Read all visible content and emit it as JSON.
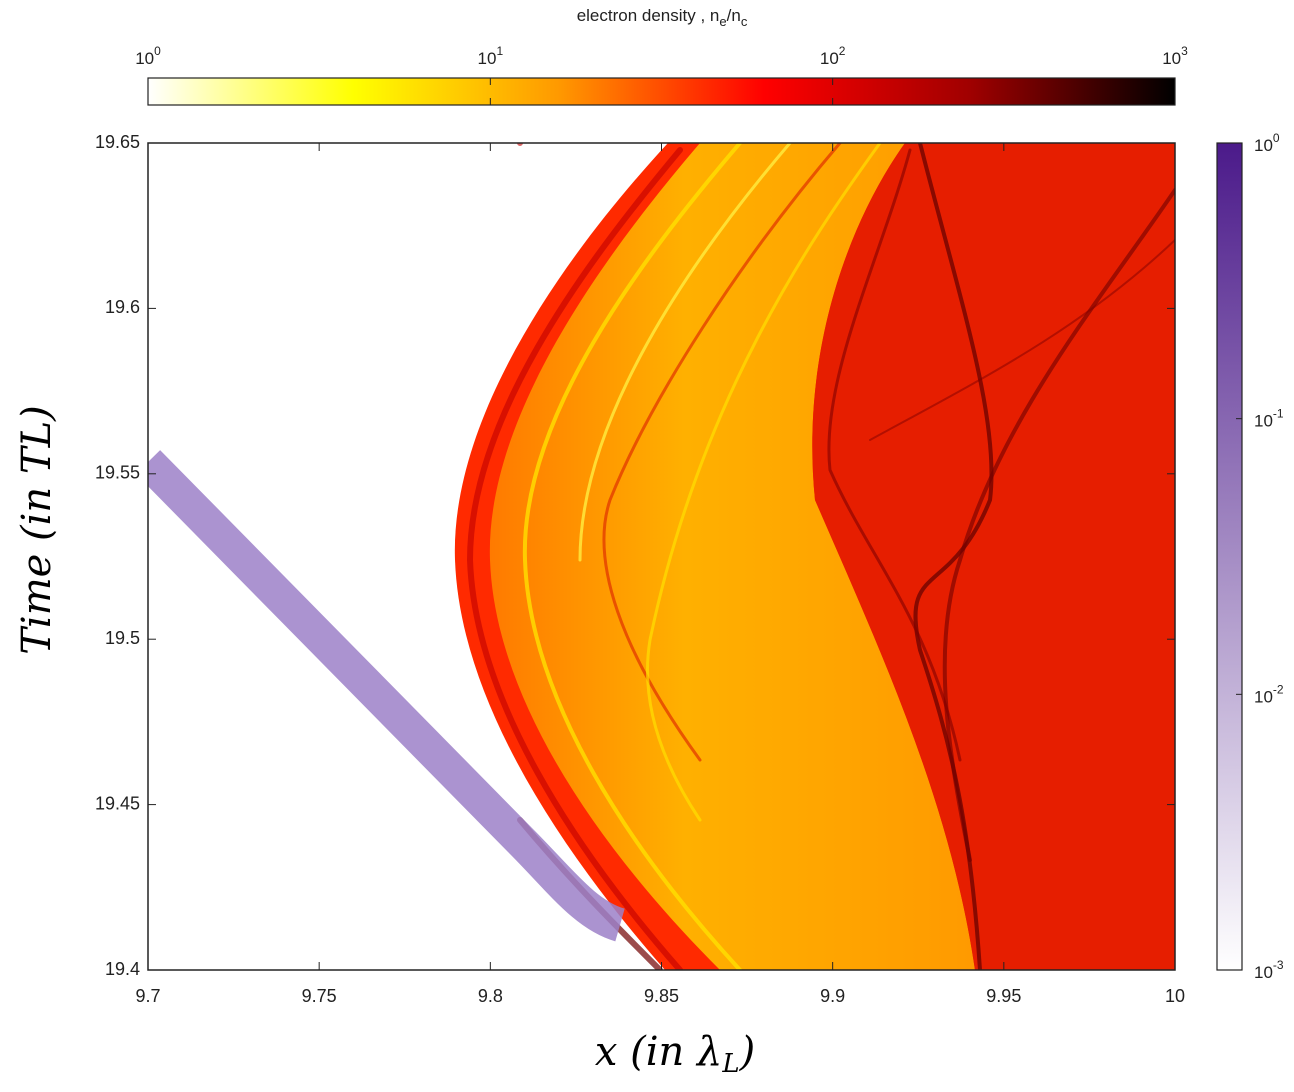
{
  "chart_data": {
    "type": "heatmap",
    "xlabel": [
      "x (in λ",
      "L",
      ")"
    ],
    "ylabel": "Time (in TL)",
    "xlim": [
      9.7,
      10
    ],
    "xticks": [
      9.7,
      9.75,
      9.8,
      9.85,
      9.9,
      9.95,
      10
    ],
    "ylim": [
      19.4,
      19.65
    ],
    "yticks": [
      19.4,
      19.45,
      19.5,
      19.55,
      19.6,
      19.65
    ],
    "colorbars": [
      {
        "title": [
          "electron density , n",
          "e",
          "/n",
          "c"
        ],
        "log": true,
        "lim": [
          1,
          1000
        ],
        "ticks": [
          {
            "value": 1,
            "label": "10",
            "sup": "0"
          },
          {
            "value": 10,
            "label": "10",
            "sup": "1"
          },
          {
            "value": 100,
            "label": "10",
            "sup": "2"
          },
          {
            "value": 1000,
            "label": "10",
            "sup": "3"
          }
        ],
        "colors": [
          "#ffffff",
          "#ffff00",
          "#ff9900",
          "#ff0000",
          "#a00000",
          "#000000"
        ],
        "orientation": "horizontal"
      },
      {
        "log": true,
        "lim": [
          0.001,
          1
        ],
        "ticks": [
          {
            "value": 0.001,
            "label": "10",
            "sup": "-3"
          },
          {
            "value": 0.01,
            "label": "10",
            "sup": "-2"
          },
          {
            "value": 0.1,
            "label": "10",
            "sup": "-1"
          },
          {
            "value": 1,
            "label": "10",
            "sup": "0"
          }
        ],
        "colors": [
          "#ffffff",
          "#4b1a8a"
        ],
        "orientation": "vertical"
      }
    ]
  }
}
